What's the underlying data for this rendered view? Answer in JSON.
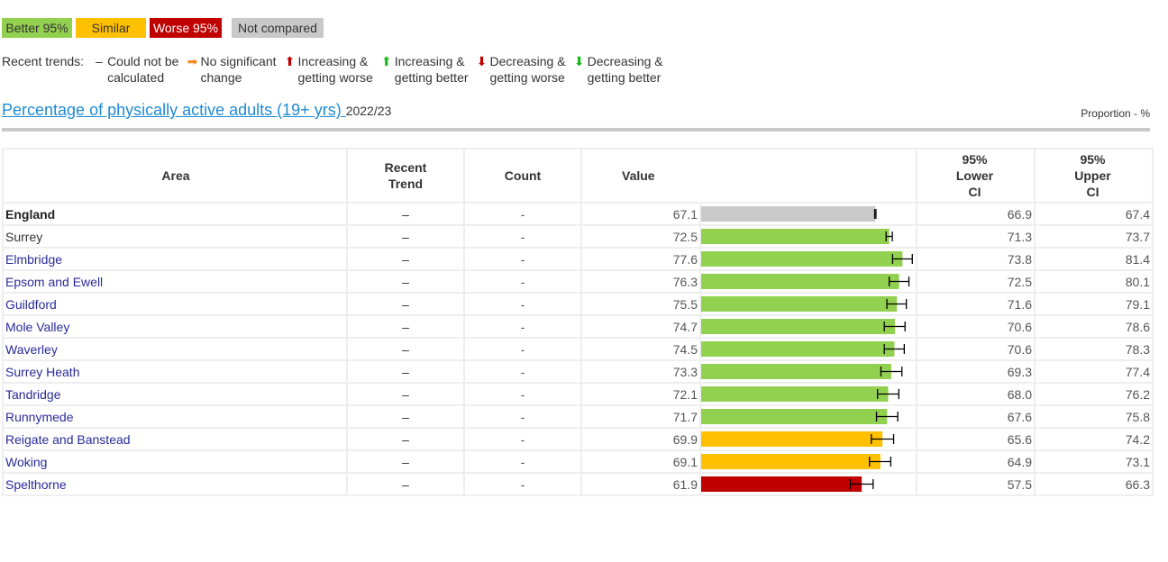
{
  "legend": {
    "better": "Better 95%",
    "similar": "Similar",
    "worse": "Worse 95%",
    "not_compared": "Not compared"
  },
  "trends": {
    "label": "Recent trends:",
    "items": [
      {
        "icon": "dash-icon",
        "glyph": "–",
        "color": "#333333",
        "line1": "Could not be",
        "line2": "calculated"
      },
      {
        "icon": "arrow-right-icon",
        "glyph": "➡",
        "color": "#f08a24",
        "line1": "No significant",
        "line2": "change"
      },
      {
        "icon": "arrow-up-red-icon",
        "glyph": "⬆",
        "color": "#c00000",
        "line1": "Increasing &",
        "line2": "getting worse"
      },
      {
        "icon": "arrow-up-green-icon",
        "glyph": "⬆",
        "color": "#1fb71f",
        "line1": "Increasing &",
        "line2": "getting better"
      },
      {
        "icon": "arrow-down-red-icon",
        "glyph": "⬇",
        "color": "#c00000",
        "line1": "Decreasing &",
        "line2": "getting worse"
      },
      {
        "icon": "arrow-down-green-icon",
        "glyph": "⬇",
        "color": "#1fb71f",
        "line1": "Decreasing &",
        "line2": "getting better"
      }
    ]
  },
  "indicator": {
    "title": "Percentage of physically active adults (19+ yrs) ",
    "period": "2022/23",
    "unit": "Proportion - %"
  },
  "table": {
    "headers": {
      "area": "Area",
      "trend_1": "Recent",
      "trend_2": "Trend",
      "count": "Count",
      "value": "Value",
      "lci_1": "95%",
      "lci_2": "Lower",
      "lci_3": "CI",
      "uci_1": "95%",
      "uci_2": "Upper",
      "uci_3": "CI"
    },
    "colors": {
      "better": "#92d050",
      "similar": "#ffc000",
      "worse": "#c00000",
      "not_compared": "#c9c9c9"
    },
    "bar_scale_max": 82,
    "rows": [
      {
        "area": "England",
        "style": "bold",
        "trend": "–",
        "count": "-",
        "value": 67.1,
        "lci": "66.9",
        "uci": "67.4",
        "status": "not_compared"
      },
      {
        "area": "Surrey",
        "style": "plain",
        "trend": "–",
        "count": "-",
        "value": 72.5,
        "lci": "71.3",
        "uci": "73.7",
        "status": "better"
      },
      {
        "area": "Elmbridge",
        "style": "link",
        "trend": "–",
        "count": "-",
        "value": 77.6,
        "lci": "73.8",
        "uci": "81.4",
        "status": "better"
      },
      {
        "area": "Epsom and Ewell",
        "style": "link",
        "trend": "–",
        "count": "-",
        "value": 76.3,
        "lci": "72.5",
        "uci": "80.1",
        "status": "better"
      },
      {
        "area": "Guildford",
        "style": "link",
        "trend": "–",
        "count": "-",
        "value": 75.5,
        "lci": "71.6",
        "uci": "79.1",
        "status": "better"
      },
      {
        "area": "Mole Valley",
        "style": "link",
        "trend": "–",
        "count": "-",
        "value": 74.7,
        "lci": "70.6",
        "uci": "78.6",
        "status": "better"
      },
      {
        "area": "Waverley",
        "style": "link",
        "trend": "–",
        "count": "-",
        "value": 74.5,
        "lci": "70.6",
        "uci": "78.3",
        "status": "better"
      },
      {
        "area": "Surrey Heath",
        "style": "link",
        "trend": "–",
        "count": "-",
        "value": 73.3,
        "lci": "69.3",
        "uci": "77.4",
        "status": "better"
      },
      {
        "area": "Tandridge",
        "style": "link",
        "trend": "–",
        "count": "-",
        "value": 72.1,
        "lci": "68.0",
        "uci": "76.2",
        "status": "better"
      },
      {
        "area": "Runnymede",
        "style": "link",
        "trend": "–",
        "count": "-",
        "value": 71.7,
        "lci": "67.6",
        "uci": "75.8",
        "status": "better"
      },
      {
        "area": "Reigate and Banstead",
        "style": "link",
        "trend": "–",
        "count": "-",
        "value": 69.9,
        "lci": "65.6",
        "uci": "74.2",
        "status": "similar"
      },
      {
        "area": "Woking",
        "style": "link",
        "trend": "–",
        "count": "-",
        "value": 69.1,
        "lci": "64.9",
        "uci": "73.1",
        "status": "similar"
      },
      {
        "area": "Spelthorne",
        "style": "link",
        "trend": "–",
        "count": "-",
        "value": 61.9,
        "lci": "57.5",
        "uci": "66.3",
        "status": "worse"
      }
    ]
  }
}
